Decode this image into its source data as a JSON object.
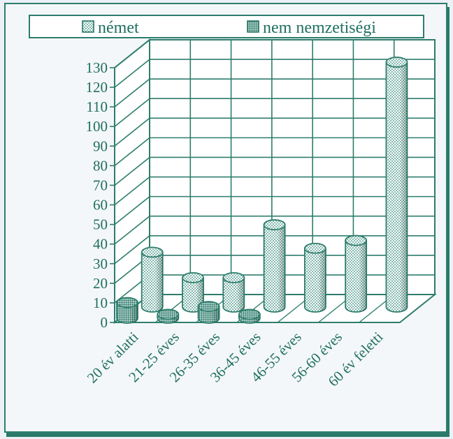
{
  "chart_data": {
    "type": "bar",
    "style": "3d-cylinder",
    "title": "",
    "xlabel": "",
    "ylabel": "",
    "categories": [
      "20 év alatti",
      "21-25 éves",
      "26-35 éves",
      "36-45 éves",
      "46-55 éves",
      "56-60 éves",
      "60 év feletti"
    ],
    "series": [
      {
        "name": "német",
        "values": [
          28,
          15,
          15,
          42,
          30,
          34,
          125
        ],
        "color": "#2e8a76",
        "pattern": "dots"
      },
      {
        "name": "nem nemzetiségi",
        "values": [
          8,
          2,
          6,
          2,
          0,
          0,
          0
        ],
        "color": "#1f6f60",
        "pattern": "dense-dots"
      }
    ],
    "yticks": [
      0,
      10,
      20,
      30,
      40,
      50,
      60,
      70,
      80,
      90,
      100,
      110,
      120,
      130
    ],
    "ylim": [
      0,
      130
    ],
    "grid": true,
    "legend_position": "top"
  }
}
